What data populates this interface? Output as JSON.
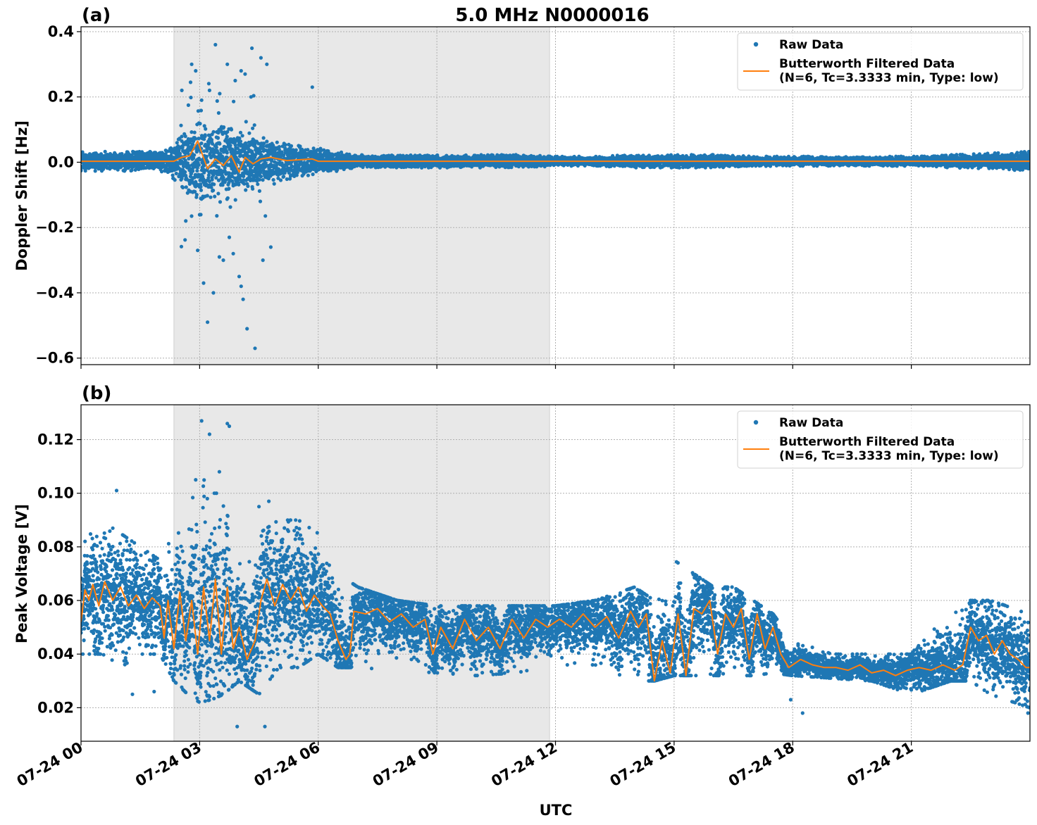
{
  "figure": {
    "title": "5.0 MHz N0000016",
    "xlabel": "UTC"
  },
  "colors": {
    "raw": "#1f77b4",
    "filtered": "#ff7f0e",
    "shade": "#e8e8e8",
    "grid": "#b0b0b0"
  },
  "chart_data": [
    {
      "type": "scatter",
      "panel_label": "(a)",
      "ylabel": "Doppler Shift [Hz]",
      "x_range_hours": [
        0,
        24
      ],
      "x_ticks": [
        "07-24 00",
        "07-24 03",
        "07-24 06",
        "07-24 09",
        "07-24 12",
        "07-24 15",
        "07-24 18",
        "07-24 21"
      ],
      "ylim": [
        -0.62,
        0.415
      ],
      "y_ticks": [
        0.4,
        0.2,
        0.0,
        -0.2,
        -0.4,
        -0.6
      ],
      "y_tick_labels": [
        "0.4",
        "0.2",
        "0.0",
        "−0.2",
        "−0.4",
        "−0.6"
      ],
      "shaded_span_hours": [
        2.35,
        11.85
      ],
      "grid": true,
      "legend_position": "top-right",
      "series": [
        {
          "name": "Raw Data",
          "style": "points",
          "envelope_x": [
            0,
            1,
            2,
            2.4,
            2.7,
            3,
            3.4,
            3.8,
            4.2,
            4.6,
            5,
            5.5,
            6,
            7,
            8,
            9,
            10,
            11,
            12,
            13,
            14,
            15,
            16,
            17,
            18,
            19,
            20,
            21,
            22,
            23,
            24
          ],
          "envelope_amp": [
            0.03,
            0.03,
            0.03,
            0.06,
            0.1,
            0.12,
            0.11,
            0.1,
            0.09,
            0.08,
            0.06,
            0.05,
            0.04,
            0.02,
            0.02,
            0.02,
            0.02,
            0.02,
            0.015,
            0.015,
            0.02,
            0.02,
            0.02,
            0.015,
            0.015,
            0.015,
            0.015,
            0.015,
            0.02,
            0.025,
            0.03
          ],
          "outliers_x": [
            2.55,
            2.8,
            2.9,
            3.05,
            3.25,
            3.4,
            3.7,
            3.9,
            4.05,
            4.15,
            4.3,
            4.55,
            4.7,
            5.85,
            2.65,
            2.95,
            3.1,
            3.35,
            3.6,
            3.75,
            4.0,
            4.1,
            4.2,
            4.4,
            4.6,
            4.8,
            3.2,
            3.5,
            3.85,
            4.05
          ],
          "outliers_y": [
            0.22,
            0.3,
            0.28,
            0.19,
            0.22,
            0.36,
            0.3,
            0.25,
            0.28,
            0.27,
            0.2,
            0.32,
            0.3,
            0.23,
            -0.18,
            -0.27,
            -0.37,
            -0.4,
            -0.3,
            -0.23,
            -0.35,
            -0.42,
            -0.51,
            -0.57,
            -0.3,
            -0.26,
            -0.49,
            -0.29,
            -0.28,
            -0.38
          ]
        },
        {
          "name": "Butterworth Filtered Data\n(N=6, Tc=3.3333 min, Type: low)",
          "style": "line",
          "x": [
            0,
            2.35,
            2.55,
            2.75,
            2.95,
            3.05,
            3.2,
            3.4,
            3.6,
            3.8,
            4.0,
            4.15,
            4.35,
            4.55,
            4.8,
            5.2,
            5.85,
            6.0,
            24
          ],
          "y": [
            0.003,
            0.003,
            0.015,
            0.02,
            0.065,
            0.03,
            -0.02,
            0.01,
            -0.01,
            0.02,
            -0.03,
            0.015,
            -0.005,
            0.01,
            0.015,
            0.005,
            0.01,
            0.003,
            0.003
          ]
        }
      ]
    },
    {
      "type": "scatter",
      "panel_label": "(b)",
      "ylabel": "Peak Voltage [V]",
      "x_range_hours": [
        0,
        24
      ],
      "x_ticks": [
        "07-24 00",
        "07-24 03",
        "07-24 06",
        "07-24 09",
        "07-24 12",
        "07-24 15",
        "07-24 18",
        "07-24 21"
      ],
      "ylim": [
        0.0075,
        0.133
      ],
      "y_ticks": [
        0.12,
        0.1,
        0.08,
        0.06,
        0.04,
        0.02
      ],
      "y_tick_labels": [
        "0.12",
        "0.10",
        "0.08",
        "0.06",
        "0.04",
        "0.02"
      ],
      "shaded_span_hours": [
        2.35,
        11.85
      ],
      "grid": true,
      "legend_position": "top-right",
      "series": [
        {
          "name": "Raw Data",
          "style": "points",
          "band_x": [
            0,
            0.5,
            1,
            1.5,
            2,
            2.35,
            2.7,
            3,
            3.3,
            3.6,
            4,
            4.5,
            5,
            5.5,
            6,
            6.5,
            7,
            8,
            9,
            10,
            11,
            12,
            13,
            14,
            14.5,
            15,
            15.5,
            16,
            16.5,
            17,
            17.5,
            18,
            19,
            20,
            21,
            22,
            22.5,
            23,
            24
          ],
          "band_low": [
            0.04,
            0.04,
            0.035,
            0.04,
            0.04,
            0.03,
            0.025,
            0.022,
            0.023,
            0.025,
            0.03,
            0.025,
            0.035,
            0.035,
            0.04,
            0.035,
            0.035,
            0.034,
            0.033,
            0.032,
            0.033,
            0.036,
            0.036,
            0.03,
            0.03,
            0.032,
            0.032,
            0.032,
            0.032,
            0.032,
            0.033,
            0.032,
            0.031,
            0.03,
            0.025,
            0.03,
            0.03,
            0.025,
            0.02
          ],
          "band_high": [
            0.08,
            0.09,
            0.085,
            0.08,
            0.075,
            0.085,
            0.09,
            0.11,
            0.1,
            0.1,
            0.075,
            0.085,
            0.09,
            0.09,
            0.085,
            0.07,
            0.065,
            0.06,
            0.058,
            0.058,
            0.058,
            0.058,
            0.06,
            0.065,
            0.06,
            0.075,
            0.07,
            0.065,
            0.065,
            0.06,
            0.055,
            0.045,
            0.04,
            0.04,
            0.04,
            0.06,
            0.06,
            0.06,
            0.055
          ],
          "outliers_x": [
            0.9,
            3.05,
            3.25,
            3.7,
            3.75,
            2.9,
            3.5,
            4.5,
            4.75,
            1.3,
            1.85,
            18.25,
            17.95,
            23.95,
            3.95,
            4.65
          ],
          "outliers_y": [
            0.101,
            0.127,
            0.122,
            0.126,
            0.125,
            0.105,
            0.108,
            0.095,
            0.097,
            0.025,
            0.026,
            0.018,
            0.023,
            0.018,
            0.013,
            0.013
          ]
        },
        {
          "name": "Butterworth Filtered Data\n(N=6, Tc=3.3333 min, Type: low)",
          "style": "line",
          "x": [
            0,
            0.1,
            0.2,
            0.3,
            0.45,
            0.6,
            0.8,
            1,
            1.2,
            1.4,
            1.6,
            1.8,
            2,
            2.1,
            2.2,
            2.35,
            2.5,
            2.65,
            2.8,
            2.95,
            3.1,
            3.25,
            3.4,
            3.55,
            3.7,
            3.85,
            4,
            4.2,
            4.4,
            4.55,
            4.7,
            4.9,
            5.1,
            5.3,
            5.5,
            5.7,
            5.9,
            6.1,
            6.3,
            6.5,
            6.7,
            6.8,
            6.9,
            7.2,
            7.5,
            7.8,
            8.1,
            8.4,
            8.7,
            8.9,
            9.1,
            9.4,
            9.7,
            10,
            10.3,
            10.6,
            10.9,
            11.2,
            11.5,
            11.8,
            12.1,
            12.4,
            12.7,
            13,
            13.3,
            13.6,
            13.9,
            14.1,
            14.3,
            14.5,
            14.7,
            14.9,
            15.1,
            15.3,
            15.5,
            15.7,
            15.9,
            16.1,
            16.3,
            16.5,
            16.7,
            16.9,
            17.1,
            17.3,
            17.5,
            17.7,
            17.9,
            18.2,
            18.5,
            18.8,
            19.1,
            19.4,
            19.7,
            20,
            20.3,
            20.6,
            20.9,
            21.2,
            21.5,
            21.8,
            22.1,
            22.3,
            22.5,
            22.7,
            22.9,
            23.1,
            23.3,
            23.5,
            23.7,
            23.9,
            24
          ],
          "y": [
            0.052,
            0.064,
            0.06,
            0.066,
            0.058,
            0.067,
            0.06,
            0.065,
            0.058,
            0.062,
            0.057,
            0.061,
            0.058,
            0.046,
            0.06,
            0.042,
            0.063,
            0.045,
            0.06,
            0.04,
            0.065,
            0.045,
            0.068,
            0.04,
            0.065,
            0.042,
            0.05,
            0.038,
            0.045,
            0.06,
            0.068,
            0.058,
            0.066,
            0.06,
            0.065,
            0.056,
            0.062,
            0.058,
            0.055,
            0.045,
            0.038,
            0.04,
            0.056,
            0.055,
            0.057,
            0.052,
            0.055,
            0.05,
            0.053,
            0.04,
            0.05,
            0.042,
            0.053,
            0.045,
            0.05,
            0.042,
            0.053,
            0.046,
            0.053,
            0.05,
            0.053,
            0.05,
            0.055,
            0.05,
            0.054,
            0.046,
            0.056,
            0.05,
            0.055,
            0.03,
            0.045,
            0.033,
            0.055,
            0.032,
            0.057,
            0.055,
            0.06,
            0.04,
            0.055,
            0.05,
            0.057,
            0.038,
            0.055,
            0.042,
            0.05,
            0.04,
            0.035,
            0.038,
            0.036,
            0.035,
            0.035,
            0.034,
            0.036,
            0.033,
            0.034,
            0.032,
            0.034,
            0.035,
            0.034,
            0.036,
            0.034,
            0.036,
            0.05,
            0.045,
            0.047,
            0.04,
            0.045,
            0.04,
            0.038,
            0.035,
            0.035
          ]
        }
      ]
    }
  ]
}
